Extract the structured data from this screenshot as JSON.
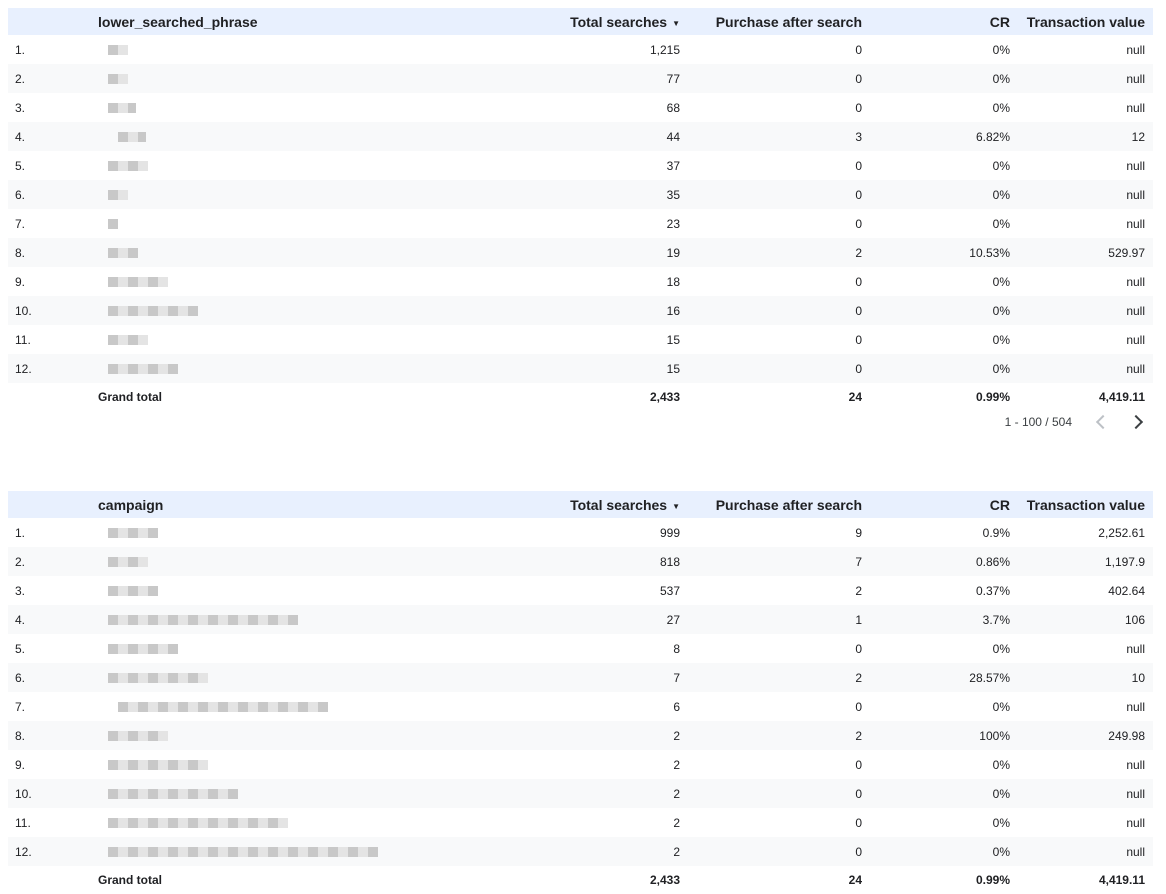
{
  "table1": {
    "header": {
      "index": "",
      "dimension": "lower_searched_phrase",
      "total_searches": "Total searches",
      "sort_icon": "sort-desc-icon",
      "purchase": "Purchase after search",
      "cr": "CR",
      "value": "Transaction value"
    },
    "rows": [
      {
        "idx": "1.",
        "total": "1,215",
        "purchase": "0",
        "cr": "0%",
        "value": "null"
      },
      {
        "idx": "2.",
        "total": "77",
        "purchase": "0",
        "cr": "0%",
        "value": "null"
      },
      {
        "idx": "3.",
        "total": "68",
        "purchase": "0",
        "cr": "0%",
        "value": "null"
      },
      {
        "idx": "4.",
        "total": "44",
        "purchase": "3",
        "cr": "6.82%",
        "value": "12"
      },
      {
        "idx": "5.",
        "total": "37",
        "purchase": "0",
        "cr": "0%",
        "value": "null"
      },
      {
        "idx": "6.",
        "total": "35",
        "purchase": "0",
        "cr": "0%",
        "value": "null"
      },
      {
        "idx": "7.",
        "total": "23",
        "purchase": "0",
        "cr": "0%",
        "value": "null"
      },
      {
        "idx": "8.",
        "total": "19",
        "purchase": "2",
        "cr": "10.53%",
        "value": "529.97"
      },
      {
        "idx": "9.",
        "total": "18",
        "purchase": "0",
        "cr": "0%",
        "value": "null"
      },
      {
        "idx": "10.",
        "total": "16",
        "purchase": "0",
        "cr": "0%",
        "value": "null"
      },
      {
        "idx": "11.",
        "total": "15",
        "purchase": "0",
        "cr": "0%",
        "value": "null"
      },
      {
        "idx": "12.",
        "total": "15",
        "purchase": "0",
        "cr": "0%",
        "value": "null"
      }
    ],
    "grand_total": {
      "label": "Grand total",
      "total": "2,433",
      "purchase": "24",
      "cr": "0.99%",
      "value": "4,419.11"
    },
    "pager": {
      "range": "1 - 100 / 504"
    }
  },
  "table2": {
    "header": {
      "index": "",
      "dimension": "campaign",
      "total_searches": "Total searches",
      "sort_icon": "sort-desc-icon",
      "purchase": "Purchase after search",
      "cr": "CR",
      "value": "Transaction value"
    },
    "rows": [
      {
        "idx": "1.",
        "total": "999",
        "purchase": "9",
        "cr": "0.9%",
        "value": "2,252.61"
      },
      {
        "idx": "2.",
        "total": "818",
        "purchase": "7",
        "cr": "0.86%",
        "value": "1,197.9"
      },
      {
        "idx": "3.",
        "total": "537",
        "purchase": "2",
        "cr": "0.37%",
        "value": "402.64"
      },
      {
        "idx": "4.",
        "total": "27",
        "purchase": "1",
        "cr": "3.7%",
        "value": "106"
      },
      {
        "idx": "5.",
        "total": "8",
        "purchase": "0",
        "cr": "0%",
        "value": "null"
      },
      {
        "idx": "6.",
        "total": "7",
        "purchase": "2",
        "cr": "28.57%",
        "value": "10"
      },
      {
        "idx": "7.",
        "total": "6",
        "purchase": "0",
        "cr": "0%",
        "value": "null"
      },
      {
        "idx": "8.",
        "total": "2",
        "purchase": "2",
        "cr": "100%",
        "value": "249.98"
      },
      {
        "idx": "9.",
        "total": "2",
        "purchase": "0",
        "cr": "0%",
        "value": "null"
      },
      {
        "idx": "10.",
        "total": "2",
        "purchase": "0",
        "cr": "0%",
        "value": "null"
      },
      {
        "idx": "11.",
        "total": "2",
        "purchase": "0",
        "cr": "0%",
        "value": "null"
      },
      {
        "idx": "12.",
        "total": "2",
        "purchase": "0",
        "cr": "0%",
        "value": "null"
      }
    ],
    "grand_total": {
      "label": "Grand total",
      "total": "2,433",
      "purchase": "24",
      "cr": "0.99%",
      "value": "4,419.11"
    }
  },
  "colors": {
    "header_bg": "#e8f0fe",
    "alt_row_bg": "#f8f9fa",
    "text": "#202124",
    "blur": "#c8c8c8"
  }
}
